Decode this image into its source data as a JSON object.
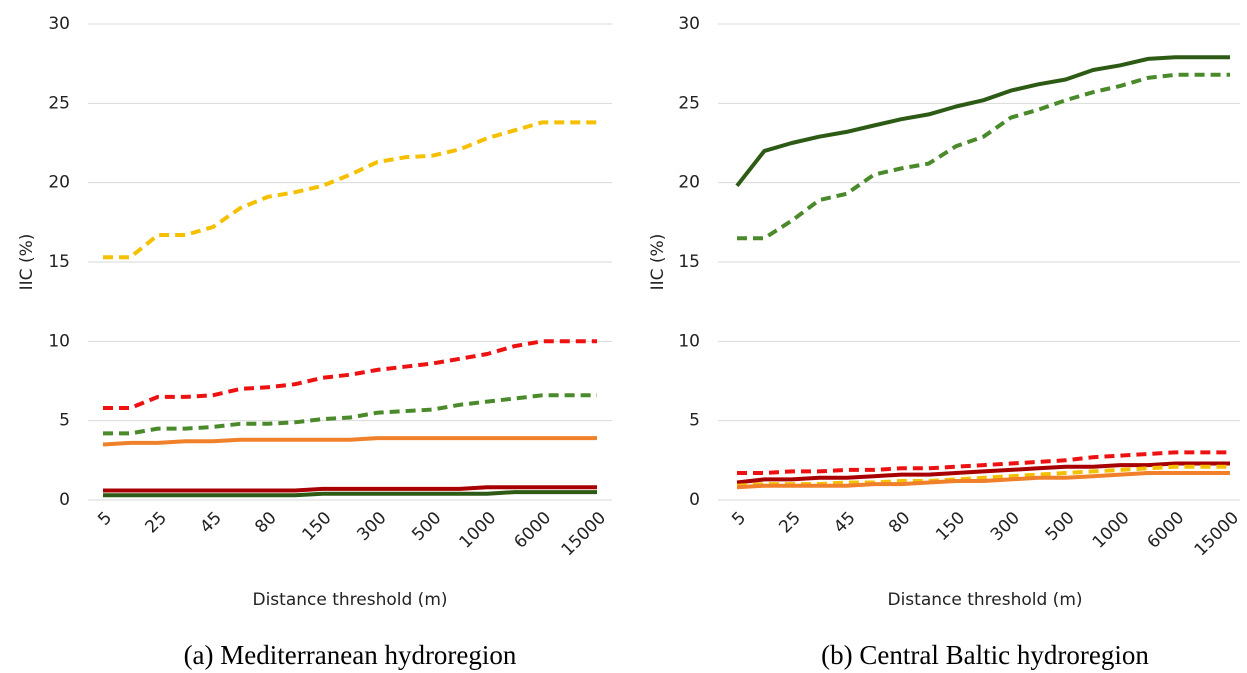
{
  "chart_data": [
    {
      "type": "line",
      "y_label": "IIC (%)",
      "x_label": "Distance threshold (m)",
      "caption": "(a) Mediterranean hydroregion",
      "categories": [
        "5",
        null,
        "25",
        null,
        "45",
        null,
        "80",
        null,
        "150",
        null,
        "300",
        null,
        "500",
        null,
        "1000",
        null,
        "6000",
        null,
        "15000"
      ],
      "ylim": [
        0,
        30
      ],
      "yticks": [
        0,
        5,
        10,
        15,
        20,
        25,
        30
      ],
      "grid": true,
      "series": [
        {
          "color": "#f5c000",
          "dashed": true,
          "values": [
            15.3,
            15.3,
            16.7,
            16.7,
            17.2,
            18.4,
            19.1,
            19.4,
            19.8,
            20.5,
            21.3,
            21.6,
            21.7,
            22.1,
            22.8,
            23.3,
            23.8,
            23.8,
            23.8
          ]
        },
        {
          "color": "#ee1111",
          "dashed": true,
          "values": [
            5.8,
            5.8,
            6.5,
            6.5,
            6.6,
            7.0,
            7.1,
            7.3,
            7.7,
            7.9,
            8.2,
            8.4,
            8.6,
            8.9,
            9.2,
            9.7,
            10.0,
            10.0,
            10.0
          ]
        },
        {
          "color": "#4a8a2a",
          "dashed": true,
          "values": [
            4.2,
            4.2,
            4.5,
            4.5,
            4.6,
            4.8,
            4.8,
            4.9,
            5.1,
            5.2,
            5.5,
            5.6,
            5.7,
            6.0,
            6.2,
            6.4,
            6.6,
            6.6,
            6.6
          ]
        },
        {
          "color": "#f0802a",
          "dashed": false,
          "values": [
            3.5,
            3.6,
            3.6,
            3.7,
            3.7,
            3.8,
            3.8,
            3.8,
            3.8,
            3.8,
            3.9,
            3.9,
            3.9,
            3.9,
            3.9,
            3.9,
            3.9,
            3.9,
            3.9
          ]
        },
        {
          "color": "#a80000",
          "dashed": false,
          "values": [
            0.6,
            0.6,
            0.6,
            0.6,
            0.6,
            0.6,
            0.6,
            0.6,
            0.7,
            0.7,
            0.7,
            0.7,
            0.7,
            0.7,
            0.8,
            0.8,
            0.8,
            0.8,
            0.8
          ]
        },
        {
          "color": "#2d5a14",
          "dashed": false,
          "values": [
            0.3,
            0.3,
            0.3,
            0.3,
            0.3,
            0.3,
            0.3,
            0.3,
            0.4,
            0.4,
            0.4,
            0.4,
            0.4,
            0.4,
            0.4,
            0.5,
            0.5,
            0.5,
            0.5
          ]
        }
      ]
    },
    {
      "type": "line",
      "y_label": "IIC (%)",
      "x_label": "Distance threshold (m)",
      "caption": "(b) Central Baltic hydroregion",
      "categories": [
        "5",
        null,
        "25",
        null,
        "45",
        null,
        "80",
        null,
        "150",
        null,
        "300",
        null,
        "500",
        null,
        "1000",
        null,
        "6000",
        null,
        "15000"
      ],
      "ylim": [
        0,
        30
      ],
      "yticks": [
        0,
        5,
        10,
        15,
        20,
        25,
        30
      ],
      "grid": true,
      "series": [
        {
          "color": "#2d5a14",
          "dashed": false,
          "values": [
            19.8,
            22.0,
            22.5,
            22.9,
            23.2,
            23.6,
            24.0,
            24.3,
            24.8,
            25.2,
            25.8,
            26.2,
            26.5,
            27.1,
            27.4,
            27.8,
            27.9,
            27.9,
            27.9
          ]
        },
        {
          "color": "#4a8a2a",
          "dashed": true,
          "values": [
            16.5,
            16.5,
            17.6,
            18.9,
            19.3,
            20.5,
            20.9,
            21.2,
            22.3,
            22.9,
            24.1,
            24.6,
            25.2,
            25.7,
            26.1,
            26.6,
            26.8,
            26.8,
            26.8
          ]
        },
        {
          "color": "#ee1111",
          "dashed": true,
          "values": [
            1.7,
            1.7,
            1.8,
            1.8,
            1.9,
            1.9,
            2.0,
            2.0,
            2.1,
            2.2,
            2.3,
            2.4,
            2.5,
            2.7,
            2.8,
            2.9,
            3.0,
            3.0,
            3.0
          ]
        },
        {
          "color": "#a80000",
          "dashed": false,
          "values": [
            1.1,
            1.3,
            1.3,
            1.4,
            1.4,
            1.5,
            1.6,
            1.6,
            1.7,
            1.8,
            1.9,
            2.0,
            2.1,
            2.1,
            2.2,
            2.2,
            2.3,
            2.3,
            2.3
          ]
        },
        {
          "color": "#f5c000",
          "dashed": true,
          "values": [
            0.9,
            1.0,
            1.0,
            1.0,
            1.1,
            1.1,
            1.2,
            1.2,
            1.3,
            1.4,
            1.5,
            1.6,
            1.7,
            1.8,
            1.9,
            2.0,
            2.1,
            2.1,
            2.1
          ]
        },
        {
          "color": "#f0802a",
          "dashed": false,
          "values": [
            0.8,
            0.9,
            0.9,
            0.9,
            0.9,
            1.0,
            1.0,
            1.1,
            1.2,
            1.2,
            1.3,
            1.4,
            1.4,
            1.5,
            1.6,
            1.7,
            1.7,
            1.7,
            1.7
          ]
        }
      ]
    }
  ]
}
